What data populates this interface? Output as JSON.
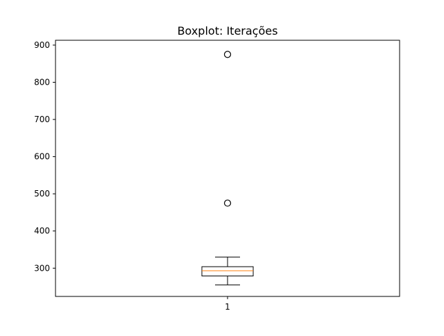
{
  "chart_data": {
    "type": "boxplot",
    "title": "Boxplot: Iterações",
    "xlabel": "",
    "ylabel": "",
    "categories": [
      "1"
    ],
    "boxes": [
      {
        "category": "1",
        "whisker_low": 255,
        "q1": 279,
        "median": 293,
        "q3": 304,
        "whisker_high": 330,
        "outliers": [
          475,
          875
        ]
      }
    ],
    "ylim": [
      224,
      913
    ],
    "yticks": [
      300,
      400,
      500,
      600,
      700,
      800,
      900
    ],
    "grid": false,
    "colors": {
      "box": "#000000",
      "median": "#ff7f0e",
      "whisker": "#000000",
      "outlier": "#000000",
      "axes": "#000000",
      "background": "#ffffff"
    }
  }
}
